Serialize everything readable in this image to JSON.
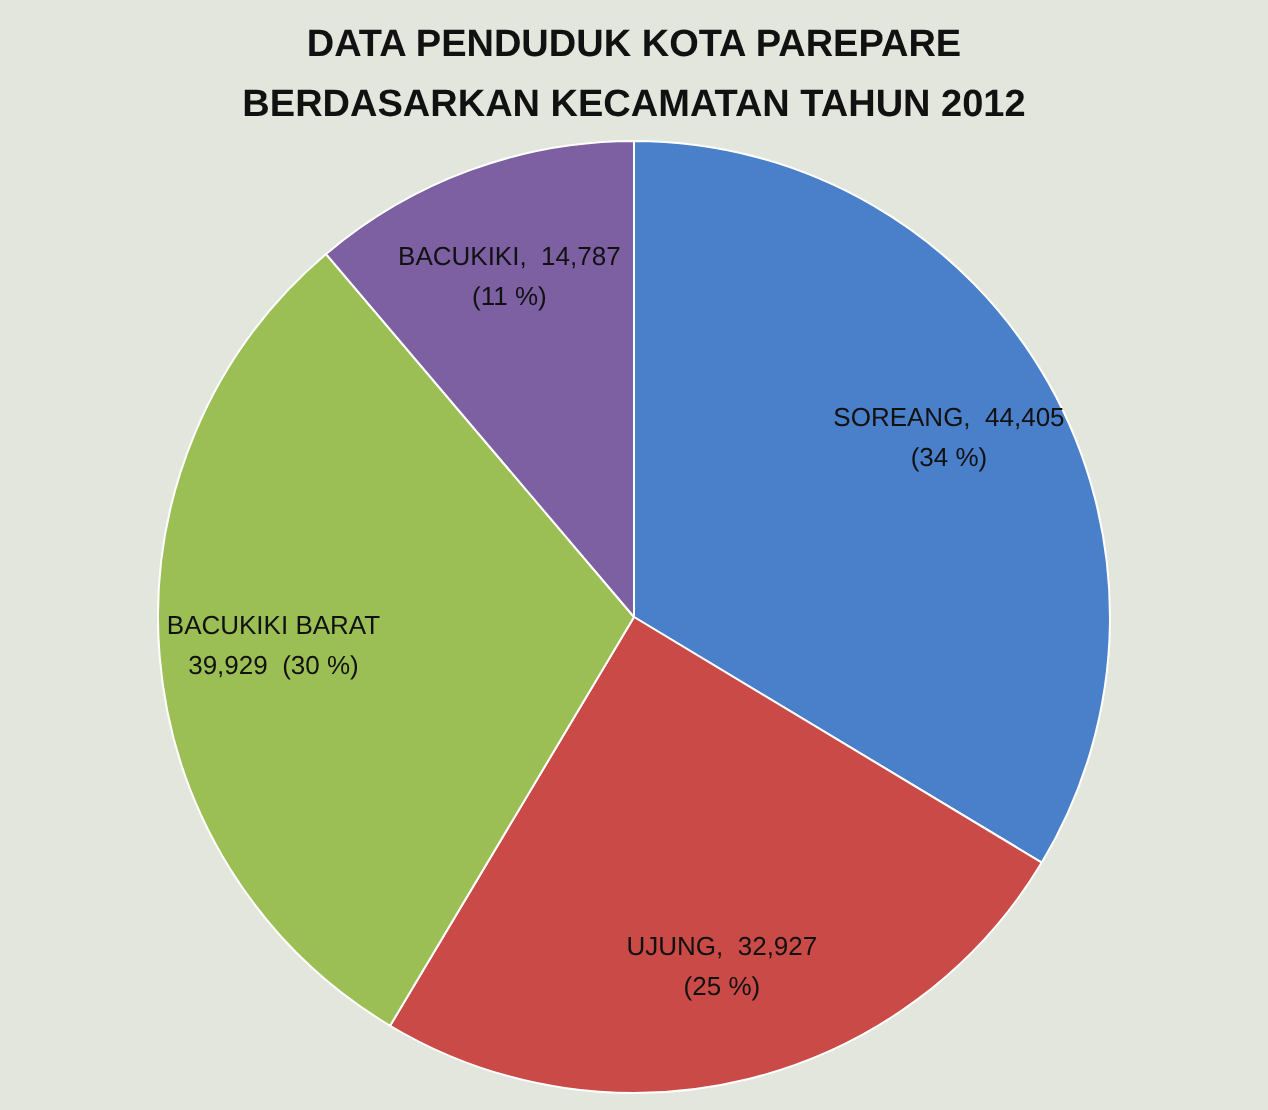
{
  "chart_data": {
    "type": "pie",
    "title": "DATA PENDUDUK KOTA PAREPARE BERDASARKAN KECAMATAN TAHUN 2012",
    "categories": [
      "SOREANG",
      "UJUNG",
      "BACUKIKI BARAT",
      "BACUKIKI"
    ],
    "values": [
      44405,
      32927,
      39929,
      14787
    ],
    "colors": [
      "#4a7fc9",
      "#c94a47",
      "#9cbf55",
      "#7d60a2"
    ],
    "value_labels": [
      "44,405\n(34 %)",
      "32,927\n(25 %)",
      "39,929  (30 %)",
      "14,787\n(11 %)"
    ],
    "legend": false
  }
}
